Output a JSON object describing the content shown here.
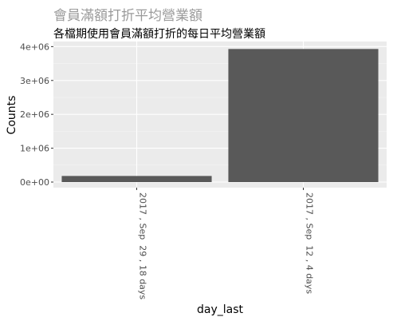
{
  "chart_data": {
    "type": "bar",
    "title": "會員滿額打折平均營業額",
    "subtitle": "各檔期使用會員滿額打折的每日平均營業額",
    "xlabel": "day_last",
    "ylabel": "Counts",
    "categories": [
      "2017 , Sep  29 , 18 days",
      "2017 , Sep  12 , 4 days"
    ],
    "values": [
      180000,
      3930000
    ],
    "ylim": [
      0,
      4150000
    ],
    "yticks": [
      0,
      1000000,
      2000000,
      3000000,
      4000000
    ],
    "ytick_labels": [
      "0e+00",
      "1e+06",
      "2e+06",
      "3e+06",
      "4e+06"
    ],
    "grid": true,
    "legend": "none",
    "colors": {
      "panel": "#ebebeb",
      "bar": "#595959",
      "grid_major": "#ffffff",
      "grid_minor": "#f5f5f5",
      "title": "#9a9a9a",
      "subtitle": "#000000",
      "tick_label": "#4d4d4d",
      "axis_title": "#000000",
      "tick_mark": "#333333"
    }
  }
}
